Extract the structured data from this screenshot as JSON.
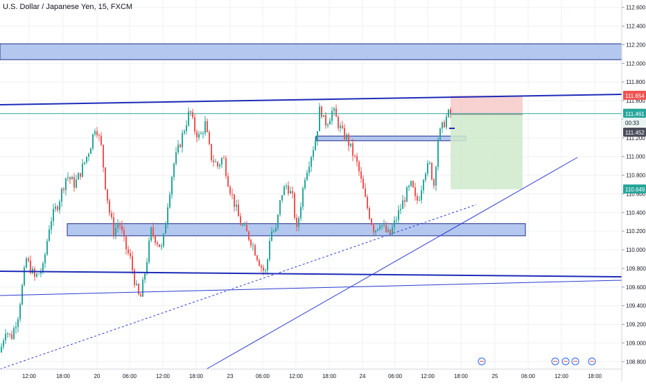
{
  "chart_data": {
    "type": "candlestick",
    "title": "U.S. Dollar / Japanese Yen, 15, FXCM",
    "ylim": [
      108.72,
      112.68
    ],
    "y_ticks": [
      "108.800",
      "109.000",
      "109.200",
      "109.400",
      "109.600",
      "109.800",
      "110.000",
      "110.200",
      "110.400",
      "110.600",
      "110.800",
      "111.000",
      "111.200",
      "111.400",
      "111.600",
      "111.800",
      "112.000",
      "112.200",
      "112.400",
      "112.600"
    ],
    "x_ticks": [
      "12:00",
      "18:00",
      "20",
      "06:00",
      "12:00",
      "18:00",
      "23",
      "06:00",
      "12:00",
      "18:00",
      "24",
      "06:00",
      "12:00",
      "18:00",
      "25",
      "06:00",
      "12:00",
      "18:00"
    ],
    "price_labels": {
      "stop_loss": "111.654",
      "last_price": "111.461",
      "countdown": "00:33",
      "entry": "111.452",
      "take_profit": "110.649"
    },
    "ohlc_path": [
      [
        0,
        108.9
      ],
      [
        8,
        109.15
      ],
      [
        16,
        109.05
      ],
      [
        26,
        109.3
      ],
      [
        38,
        109.9
      ],
      [
        50,
        109.7
      ],
      [
        62,
        109.8
      ],
      [
        72,
        110.3
      ],
      [
        84,
        110.5
      ],
      [
        96,
        110.8
      ],
      [
        108,
        110.7
      ],
      [
        120,
        110.9
      ],
      [
        130,
        111.1
      ],
      [
        138,
        111.35
      ],
      [
        146,
        111.1
      ],
      [
        152,
        110.7
      ],
      [
        158,
        110.4
      ],
      [
        164,
        110.2
      ],
      [
        172,
        110.3
      ],
      [
        180,
        110.05
      ],
      [
        188,
        109.9
      ],
      [
        196,
        109.6
      ],
      [
        202,
        109.45
      ],
      [
        210,
        109.8
      ],
      [
        218,
        110.2
      ],
      [
        226,
        110.1
      ],
      [
        234,
        110.0
      ],
      [
        242,
        110.5
      ],
      [
        250,
        110.9
      ],
      [
        258,
        111.1
      ],
      [
        266,
        111.3
      ],
      [
        274,
        111.5
      ],
      [
        280,
        111.3
      ],
      [
        288,
        111.2
      ],
      [
        296,
        111.35
      ],
      [
        304,
        111.0
      ],
      [
        314,
        110.9
      ],
      [
        322,
        111.0
      ],
      [
        330,
        110.7
      ],
      [
        338,
        110.5
      ],
      [
        346,
        110.3
      ],
      [
        354,
        110.2
      ],
      [
        362,
        110.1
      ],
      [
        370,
        109.95
      ],
      [
        378,
        109.8
      ],
      [
        384,
        109.75
      ],
      [
        390,
        110.2
      ],
      [
        398,
        110.2
      ],
      [
        406,
        110.6
      ],
      [
        414,
        110.7
      ],
      [
        422,
        110.55
      ],
      [
        428,
        110.2
      ],
      [
        434,
        110.5
      ],
      [
        440,
        110.8
      ],
      [
        448,
        111.0
      ],
      [
        456,
        111.2
      ],
      [
        462,
        111.55
      ],
      [
        468,
        111.35
      ],
      [
        474,
        111.4
      ],
      [
        480,
        111.5
      ],
      [
        488,
        111.35
      ],
      [
        494,
        111.25
      ],
      [
        500,
        111.2
      ],
      [
        508,
        111.05
      ],
      [
        516,
        110.9
      ],
      [
        522,
        110.7
      ],
      [
        528,
        110.5
      ],
      [
        534,
        110.35
      ],
      [
        540,
        110.2
      ],
      [
        548,
        110.3
      ],
      [
        556,
        110.2
      ],
      [
        562,
        110.15
      ],
      [
        570,
        110.3
      ],
      [
        578,
        110.45
      ],
      [
        586,
        110.6
      ],
      [
        594,
        110.7
      ],
      [
        600,
        110.5
      ],
      [
        606,
        110.6
      ],
      [
        612,
        110.85
      ],
      [
        620,
        110.9
      ],
      [
        626,
        110.7
      ],
      [
        632,
        111.2
      ],
      [
        640,
        111.35
      ],
      [
        646,
        111.45
      ],
      [
        650,
        111.46
      ]
    ]
  }
}
